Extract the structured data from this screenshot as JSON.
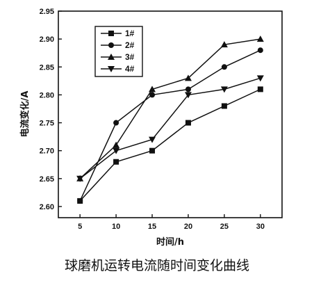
{
  "chart_data": {
    "type": "line",
    "x": [
      5,
      10,
      15,
      20,
      25,
      30
    ],
    "xticks": [
      "5",
      "10",
      "15",
      "20",
      "25",
      "30"
    ],
    "yticks": [
      "2.60",
      "2.65",
      "2.70",
      "2.75",
      "2.80",
      "2.85",
      "2.90",
      "2.95"
    ],
    "xlim": [
      2,
      33
    ],
    "ylim": [
      2.58,
      2.95
    ],
    "xlabel": "时间/h",
    "ylabel": "电流变化/A",
    "caption": "球磨机运转电流随时间变化曲线",
    "legend_position": "top-left",
    "grid": false,
    "color": "#111111",
    "series": [
      {
        "name": "1#",
        "marker": "square",
        "values": [
          2.61,
          2.68,
          2.7,
          2.75,
          2.78,
          2.81
        ]
      },
      {
        "name": "2#",
        "marker": "circle",
        "values": [
          2.61,
          2.75,
          2.8,
          2.81,
          2.85,
          2.88
        ]
      },
      {
        "name": "3#",
        "marker": "triangle-up",
        "values": [
          2.65,
          2.71,
          2.81,
          2.83,
          2.89,
          2.9
        ]
      },
      {
        "name": "4#",
        "marker": "triangle-down",
        "values": [
          2.65,
          2.7,
          2.72,
          2.8,
          2.81,
          2.83
        ]
      }
    ]
  }
}
